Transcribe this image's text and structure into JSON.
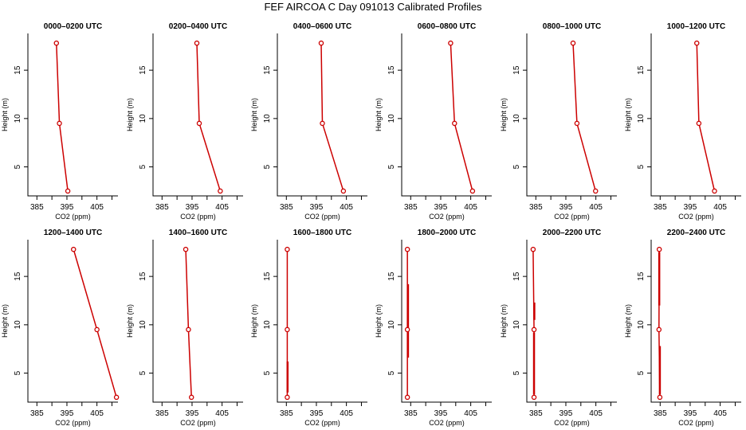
{
  "title": "FEF AIRCOA C  Day 091013  Calibrated Profiles",
  "colors": {
    "profile": "#cc0000",
    "axis": "#000000",
    "background": "#ffffff"
  },
  "chart_data": [
    {
      "type": "line",
      "title": "0000–0200 UTC",
      "xlabel": "CO2 (ppm)",
      "ylabel": "Height (m)",
      "xlim": [
        382,
        412
      ],
      "ylim": [
        2.0,
        18.8
      ],
      "xticks": [
        385,
        395,
        405
      ],
      "yticks": [
        5,
        10,
        15
      ],
      "points": [
        {
          "x": 391.5,
          "y": 17.8
        },
        {
          "x": 392.5,
          "y": 9.5
        },
        {
          "x": 395.3,
          "y": 2.5
        }
      ],
      "ranges": []
    },
    {
      "type": "line",
      "title": "0200–0400 UTC",
      "xlabel": "CO2 (ppm)",
      "ylabel": "Height (m)",
      "xlim": [
        382,
        412
      ],
      "ylim": [
        2.0,
        18.8
      ],
      "xticks": [
        385,
        395,
        405
      ],
      "yticks": [
        5,
        10,
        15
      ],
      "points": [
        {
          "x": 396.6,
          "y": 17.8
        },
        {
          "x": 397.4,
          "y": 9.5
        },
        {
          "x": 404.4,
          "y": 2.5
        }
      ],
      "ranges": []
    },
    {
      "type": "line",
      "title": "0400–0600 UTC",
      "xlabel": "CO2 (ppm)",
      "ylabel": "Height (m)",
      "xlim": [
        382,
        412
      ],
      "ylim": [
        2.0,
        18.8
      ],
      "xticks": [
        385,
        395,
        405
      ],
      "yticks": [
        5,
        10,
        15
      ],
      "points": [
        {
          "x": 396.6,
          "y": 17.8
        },
        {
          "x": 397.0,
          "y": 9.5
        },
        {
          "x": 404.0,
          "y": 2.5
        }
      ],
      "ranges": []
    },
    {
      "type": "line",
      "title": "0600–0800 UTC",
      "xlabel": "CO2 (ppm)",
      "ylabel": "Height (m)",
      "xlim": [
        382,
        412
      ],
      "ylim": [
        2.0,
        18.8
      ],
      "xticks": [
        385,
        395,
        405
      ],
      "yticks": [
        5,
        10,
        15
      ],
      "points": [
        {
          "x": 398.3,
          "y": 17.8
        },
        {
          "x": 399.6,
          "y": 9.5
        },
        {
          "x": 405.6,
          "y": 2.5
        }
      ],
      "ranges": []
    },
    {
      "type": "line",
      "title": "0800–1000 UTC",
      "xlabel": "CO2 (ppm)",
      "ylabel": "Height (m)",
      "xlim": [
        382,
        412
      ],
      "ylim": [
        2.0,
        18.8
      ],
      "xticks": [
        385,
        395,
        405
      ],
      "yticks": [
        5,
        10,
        15
      ],
      "points": [
        {
          "x": 397.4,
          "y": 17.8
        },
        {
          "x": 398.7,
          "y": 9.5
        },
        {
          "x": 404.9,
          "y": 2.5
        }
      ],
      "ranges": []
    },
    {
      "type": "line",
      "title": "1000–1200 UTC",
      "xlabel": "CO2 (ppm)",
      "ylabel": "Height (m)",
      "xlim": [
        382,
        412
      ],
      "ylim": [
        2.0,
        18.8
      ],
      "xticks": [
        385,
        395,
        405
      ],
      "yticks": [
        5,
        10,
        15
      ],
      "points": [
        {
          "x": 397.2,
          "y": 17.8
        },
        {
          "x": 397.9,
          "y": 9.5
        },
        {
          "x": 403.1,
          "y": 2.5
        }
      ],
      "ranges": []
    },
    {
      "type": "line",
      "title": "1200–1400 UTC",
      "xlabel": "CO2 (ppm)",
      "ylabel": "Height (m)",
      "xlim": [
        382,
        412
      ],
      "ylim": [
        2.0,
        18.8
      ],
      "xticks": [
        385,
        395,
        405
      ],
      "yticks": [
        5,
        10,
        15
      ],
      "points": [
        {
          "x": 397.2,
          "y": 17.8
        },
        {
          "x": 405.0,
          "y": 9.5
        },
        {
          "x": 411.5,
          "y": 2.5
        }
      ],
      "ranges": []
    },
    {
      "type": "line",
      "title": "1400–1600 UTC",
      "xlabel": "CO2 (ppm)",
      "ylabel": "Height (m)",
      "xlim": [
        382,
        412
      ],
      "ylim": [
        2.0,
        18.8
      ],
      "xticks": [
        385,
        395,
        405
      ],
      "yticks": [
        5,
        10,
        15
      ],
      "points": [
        {
          "x": 392.9,
          "y": 17.8
        },
        {
          "x": 393.8,
          "y": 9.5
        },
        {
          "x": 394.8,
          "y": 2.5
        }
      ],
      "ranges": []
    },
    {
      "type": "line",
      "title": "1600–1800 UTC",
      "xlabel": "CO2 (ppm)",
      "ylabel": "Height (m)",
      "xlim": [
        382,
        412
      ],
      "ylim": [
        2.0,
        18.8
      ],
      "xticks": [
        385,
        395,
        405
      ],
      "yticks": [
        5,
        10,
        15
      ],
      "points": [
        {
          "x": 385.3,
          "y": 17.8
        },
        {
          "x": 385.3,
          "y": 9.5
        },
        {
          "x": 385.3,
          "y": 2.5
        }
      ],
      "ranges": [
        {
          "x": 385.4,
          "y1": 3.0,
          "y2": 6.2
        }
      ]
    },
    {
      "type": "line",
      "title": "1800–2000 UTC",
      "xlabel": "CO2 (ppm)",
      "ylabel": "Height (m)",
      "xlim": [
        382,
        412
      ],
      "ylim": [
        2.0,
        18.8
      ],
      "xticks": [
        385,
        395,
        405
      ],
      "yticks": [
        5,
        10,
        15
      ],
      "points": [
        {
          "x": 383.9,
          "y": 17.8
        },
        {
          "x": 383.9,
          "y": 9.5
        },
        {
          "x": 383.9,
          "y": 2.5
        }
      ],
      "ranges": [
        {
          "x": 384.1,
          "y1": 6.6,
          "y2": 14.2
        }
      ]
    },
    {
      "type": "line",
      "title": "2000–2200 UTC",
      "xlabel": "CO2 (ppm)",
      "ylabel": "Height (m)",
      "xlim": [
        382,
        412
      ],
      "ylim": [
        2.0,
        18.8
      ],
      "xticks": [
        385,
        395,
        405
      ],
      "yticks": [
        5,
        10,
        15
      ],
      "points": [
        {
          "x": 384.1,
          "y": 17.8
        },
        {
          "x": 384.4,
          "y": 9.5
        },
        {
          "x": 384.4,
          "y": 2.5
        }
      ],
      "ranges": [
        {
          "x": 384.5,
          "y1": 10.5,
          "y2": 12.3
        },
        {
          "x": 384.4,
          "y1": 2.8,
          "y2": 9.2
        }
      ]
    },
    {
      "type": "line",
      "title": "2200–2400 UTC",
      "xlabel": "CO2 (ppm)",
      "ylabel": "Height (m)",
      "xlim": [
        382,
        412
      ],
      "ylim": [
        2.0,
        18.8
      ],
      "xticks": [
        385,
        395,
        405
      ],
      "yticks": [
        5,
        10,
        15
      ],
      "points": [
        {
          "x": 384.7,
          "y": 17.8
        },
        {
          "x": 384.6,
          "y": 9.5
        },
        {
          "x": 384.9,
          "y": 2.5
        }
      ],
      "ranges": [
        {
          "x": 384.7,
          "y1": 12.0,
          "y2": 17.5
        },
        {
          "x": 384.9,
          "y1": 2.8,
          "y2": 7.8
        }
      ]
    }
  ]
}
